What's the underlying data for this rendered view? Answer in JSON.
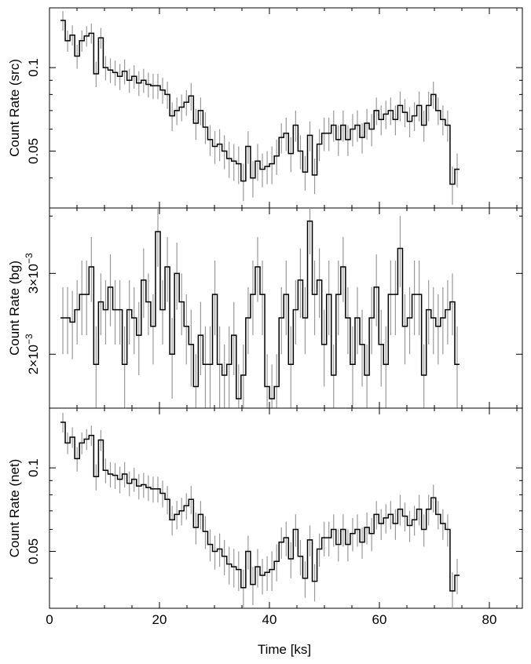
{
  "chart_data": {
    "type": "line",
    "style": "step light curve with error bars",
    "xlabel": "Time [ks]",
    "xlim": [
      0,
      86
    ],
    "x_ticks": [
      0,
      20,
      40,
      60,
      80
    ],
    "x_tick_labels": [
      "0",
      "20",
      "40",
      "60",
      "80"
    ],
    "bin_width_ks": 0.864,
    "x_start_ks": 2.0,
    "grid": false,
    "panels": [
      {
        "id": "src",
        "ylabel": "Count Rate (src)",
        "yscale": "log",
        "ylim": [
          0.032,
          0.16
        ],
        "y_ticks": [
          0.05,
          0.1
        ],
        "y_tick_labels": [
          "0.05",
          "0.1"
        ],
        "values": [
          0.148,
          0.125,
          0.131,
          0.11,
          0.125,
          0.13,
          0.133,
          0.095,
          0.128,
          0.1,
          0.098,
          0.096,
          0.093,
          0.097,
          0.09,
          0.093,
          0.088,
          0.09,
          0.087,
          0.086,
          0.086,
          0.083,
          0.08,
          0.067,
          0.07,
          0.072,
          0.075,
          0.079,
          0.063,
          0.07,
          0.061,
          0.055,
          0.052,
          0.053,
          0.05,
          0.047,
          0.046,
          0.045,
          0.039,
          0.052,
          0.04,
          0.046,
          0.043,
          0.044,
          0.045,
          0.048,
          0.056,
          0.058,
          0.049,
          0.062,
          0.05,
          0.042,
          0.057,
          0.041,
          0.053,
          0.058,
          0.058,
          0.062,
          0.055,
          0.062,
          0.055,
          0.06,
          0.062,
          0.056,
          0.063,
          0.06,
          0.07,
          0.065,
          0.068,
          0.07,
          0.065,
          0.073,
          0.069,
          0.064,
          0.067,
          0.073,
          0.062,
          0.073,
          0.08,
          0.07,
          0.065,
          0.062,
          0.038,
          0.043
        ],
        "errors": [
          0.012,
          0.011,
          0.011,
          0.011,
          0.011,
          0.011,
          0.011,
          0.01,
          0.011,
          0.01,
          0.01,
          0.01,
          0.01,
          0.01,
          0.009,
          0.009,
          0.009,
          0.009,
          0.009,
          0.009,
          0.009,
          0.009,
          0.009,
          0.008,
          0.008,
          0.008,
          0.008,
          0.009,
          0.008,
          0.008,
          0.008,
          0.007,
          0.007,
          0.007,
          0.007,
          0.007,
          0.007,
          0.007,
          0.006,
          0.007,
          0.006,
          0.007,
          0.006,
          0.006,
          0.007,
          0.007,
          0.007,
          0.008,
          0.007,
          0.008,
          0.007,
          0.006,
          0.007,
          0.006,
          0.007,
          0.008,
          0.008,
          0.008,
          0.007,
          0.008,
          0.007,
          0.008,
          0.008,
          0.007,
          0.008,
          0.008,
          0.008,
          0.008,
          0.008,
          0.008,
          0.008,
          0.009,
          0.008,
          0.008,
          0.008,
          0.009,
          0.008,
          0.009,
          0.009,
          0.008,
          0.008,
          0.008,
          0.006,
          0.006
        ]
      },
      {
        "id": "bg",
        "ylabel": "Count Rate (bg)",
        "yscale": "log",
        "ylim": [
          0.00155,
          0.0041
        ],
        "y_ticks": [
          0.002,
          0.003
        ],
        "y_tick_labels": [
          {
            "base": "2×10",
            "exp": "−3"
          },
          {
            "base": "3×10",
            "exp": "−3"
          }
        ],
        "values": [
          0.0024,
          0.0024,
          0.00235,
          0.0025,
          0.0027,
          0.0027,
          0.0031,
          0.0019,
          0.0026,
          0.0025,
          0.0028,
          0.0025,
          0.0025,
          0.0019,
          0.0025,
          0.0024,
          0.0022,
          0.0029,
          0.0026,
          0.0023,
          0.0037,
          0.0025,
          0.0031,
          0.002,
          0.003,
          0.0026,
          0.0023,
          0.0021,
          0.0017,
          0.0022,
          0.0019,
          0.0019,
          0.0027,
          0.0019,
          0.0018,
          0.0019,
          0.0022,
          0.0016,
          0.0018,
          0.0024,
          0.0027,
          0.0031,
          0.0027,
          0.0017,
          0.0016,
          0.0017,
          0.0024,
          0.0027,
          0.0019,
          0.0025,
          0.0029,
          0.0024,
          0.0039,
          0.0027,
          0.0029,
          0.0021,
          0.0027,
          0.0018,
          0.0027,
          0.0031,
          0.0024,
          0.0019,
          0.0024,
          0.0021,
          0.0018,
          0.0024,
          0.0028,
          0.0021,
          0.0019,
          0.0027,
          0.0027,
          0.0034,
          0.0023,
          0.0024,
          0.0027,
          0.0027,
          0.0018,
          0.0025,
          0.0024,
          0.0023,
          0.0024,
          0.0025,
          0.0026,
          0.0019
        ],
        "errors": [
          0.0004,
          0.0004,
          0.0004,
          0.0004,
          0.0005,
          0.0005,
          0.0005,
          0.0004,
          0.0004,
          0.0004,
          0.0005,
          0.0004,
          0.0004,
          0.0004,
          0.0004,
          0.0004,
          0.0004,
          0.0005,
          0.0004,
          0.0004,
          0.0006,
          0.0004,
          0.0005,
          0.0004,
          0.0005,
          0.0004,
          0.0004,
          0.0004,
          0.0003,
          0.0004,
          0.0004,
          0.0004,
          0.0005,
          0.0004,
          0.0003,
          0.0004,
          0.0004,
          0.0003,
          0.0003,
          0.0004,
          0.0005,
          0.0005,
          0.0005,
          0.0003,
          0.0003,
          0.0003,
          0.0004,
          0.0005,
          0.0004,
          0.0004,
          0.0005,
          0.0004,
          0.0006,
          0.0005,
          0.0005,
          0.0004,
          0.0005,
          0.0003,
          0.0005,
          0.0005,
          0.0004,
          0.0004,
          0.0004,
          0.0004,
          0.0003,
          0.0004,
          0.0005,
          0.0004,
          0.0004,
          0.0005,
          0.0005,
          0.0006,
          0.0004,
          0.0004,
          0.0005,
          0.0005,
          0.0003,
          0.0004,
          0.0004,
          0.0004,
          0.0004,
          0.0004,
          0.0004,
          0.0004
        ]
      },
      {
        "id": "net",
        "ylabel": "Count Rate (net)",
        "yscale": "log",
        "ylim": [
          0.032,
          0.16
        ],
        "y_ticks": [
          0.05,
          0.1
        ],
        "y_tick_labels": [
          "0.05",
          "0.1"
        ],
        "values": [
          0.146,
          0.123,
          0.129,
          0.108,
          0.123,
          0.127,
          0.131,
          0.093,
          0.126,
          0.098,
          0.095,
          0.094,
          0.091,
          0.095,
          0.088,
          0.091,
          0.086,
          0.087,
          0.085,
          0.084,
          0.084,
          0.081,
          0.077,
          0.065,
          0.068,
          0.07,
          0.073,
          0.077,
          0.061,
          0.068,
          0.059,
          0.053,
          0.05,
          0.051,
          0.048,
          0.045,
          0.044,
          0.043,
          0.037,
          0.05,
          0.038,
          0.044,
          0.041,
          0.042,
          0.043,
          0.046,
          0.054,
          0.056,
          0.047,
          0.06,
          0.048,
          0.04,
          0.055,
          0.039,
          0.051,
          0.056,
          0.056,
          0.06,
          0.053,
          0.06,
          0.053,
          0.058,
          0.06,
          0.054,
          0.061,
          0.058,
          0.068,
          0.063,
          0.066,
          0.068,
          0.063,
          0.071,
          0.067,
          0.062,
          0.065,
          0.071,
          0.06,
          0.071,
          0.078,
          0.068,
          0.063,
          0.06,
          0.036,
          0.041
        ],
        "errors": [
          0.012,
          0.011,
          0.011,
          0.011,
          0.011,
          0.011,
          0.011,
          0.01,
          0.011,
          0.01,
          0.01,
          0.01,
          0.01,
          0.01,
          0.009,
          0.009,
          0.009,
          0.009,
          0.009,
          0.009,
          0.009,
          0.009,
          0.009,
          0.008,
          0.008,
          0.008,
          0.008,
          0.009,
          0.008,
          0.008,
          0.008,
          0.007,
          0.007,
          0.007,
          0.007,
          0.007,
          0.007,
          0.007,
          0.006,
          0.007,
          0.006,
          0.007,
          0.006,
          0.006,
          0.007,
          0.007,
          0.007,
          0.008,
          0.007,
          0.008,
          0.007,
          0.006,
          0.007,
          0.006,
          0.007,
          0.008,
          0.008,
          0.008,
          0.007,
          0.008,
          0.007,
          0.008,
          0.008,
          0.007,
          0.008,
          0.008,
          0.008,
          0.008,
          0.008,
          0.008,
          0.008,
          0.009,
          0.008,
          0.008,
          0.008,
          0.009,
          0.008,
          0.009,
          0.009,
          0.008,
          0.008,
          0.008,
          0.006,
          0.006
        ]
      }
    ],
    "colors": {
      "step_line": "#000000",
      "error_bars": "#999999",
      "axes": "#000000"
    }
  }
}
